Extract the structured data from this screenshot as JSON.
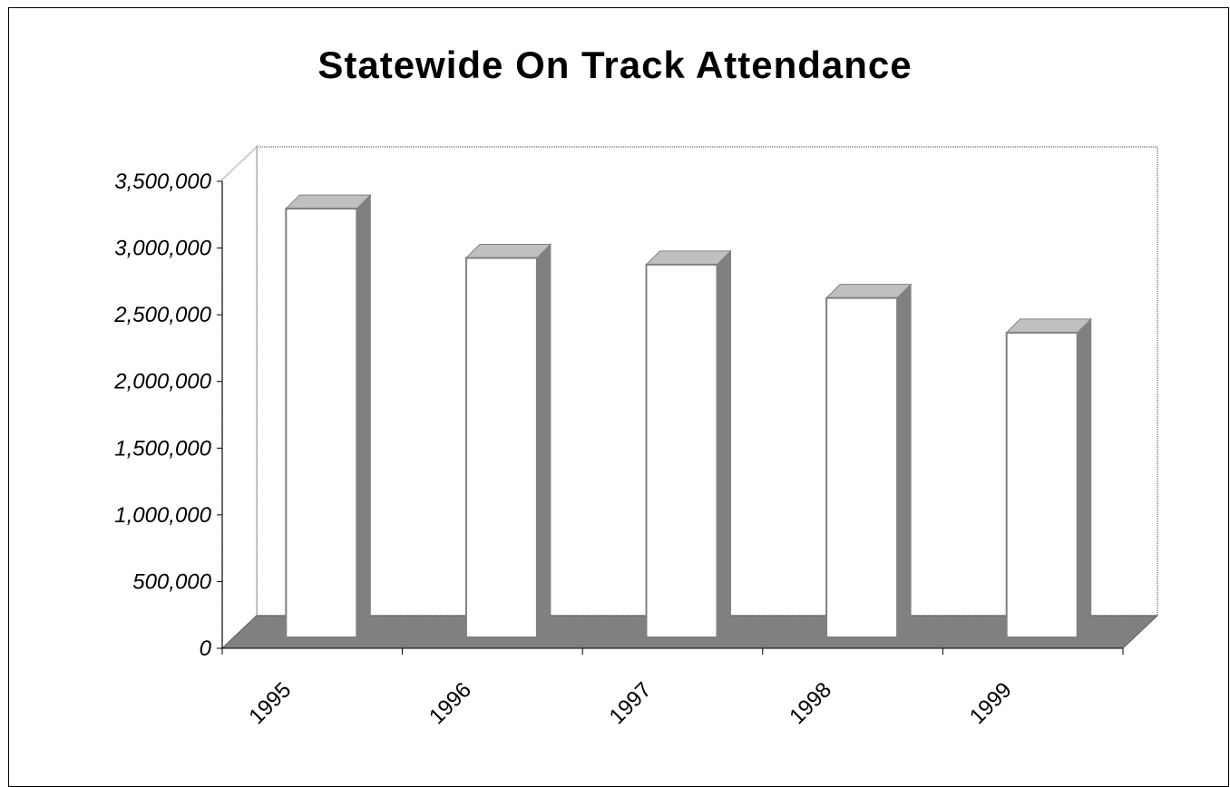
{
  "chart_data": {
    "type": "bar",
    "title": "Statewide On Track Attendance",
    "xlabel": "",
    "ylabel": "",
    "categories": [
      "1995",
      "1996",
      "1997",
      "1998",
      "1999"
    ],
    "values": [
      3350000,
      2980000,
      2930000,
      2680000,
      2420000
    ],
    "ylim": [
      0,
      3500000
    ],
    "yticks": [
      0,
      500000,
      1000000,
      1500000,
      2000000,
      2500000,
      3000000,
      3500000
    ],
    "ytick_labels": [
      "0",
      "500,000",
      "1,000,000",
      "1,500,000",
      "2,000,000",
      "2,500,000",
      "3,000,000",
      "3,500,000"
    ],
    "grid": false,
    "legend": "none",
    "style": "3d-column",
    "colors": {
      "bar_front": "#ffffff",
      "bar_side": "#808080",
      "bar_top": "#c0c0c0",
      "bar_outline": "#808080",
      "floor": "#808080",
      "back_wall": "#ffffff"
    }
  }
}
